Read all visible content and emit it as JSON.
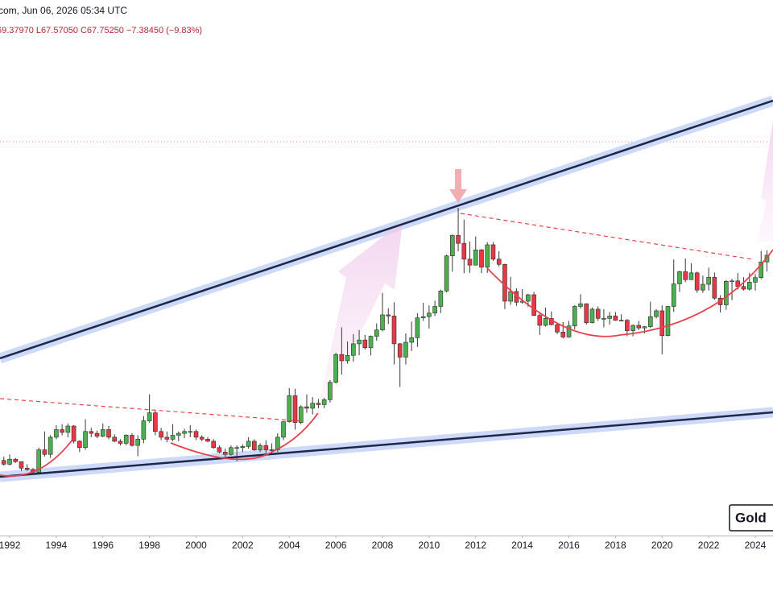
{
  "chart_data": {
    "type": "candlestick",
    "title": "com, Jun 06, 2026 05:34 UTC",
    "subtitle": "69.37970 L67.57050 C67.75250 −7.38450 (−9.83%)",
    "annotations": [
      "Gold"
    ],
    "log_scale": true,
    "up_color": "#4caf50",
    "down_color": "#e53945",
    "xlim": [
      1991.585,
      2024.76
    ],
    "xticks": [
      1992,
      1994,
      1996,
      1998,
      2000,
      2002,
      2004,
      2006,
      2008,
      2010,
      2012,
      2014,
      2016,
      2018,
      2020,
      2022,
      2024
    ],
    "ylim": [
      1.92,
      392.6
    ],
    "x": [
      1991.75,
      1992,
      1992.25,
      1992.5,
      1992.75,
      1993,
      1993.25,
      1993.5,
      1993.75,
      1994,
      1994.25,
      1994.5,
      1994.75,
      1995,
      1995.25,
      1995.5,
      1995.75,
      1996,
      1996.25,
      1996.5,
      1996.75,
      1997,
      1997.25,
      1997.5,
      1997.75,
      1998,
      1998.25,
      1998.5,
      1998.75,
      1999,
      1999.25,
      1999.5,
      1999.75,
      2000,
      2000.25,
      2000.5,
      2000.75,
      2001,
      2001.25,
      2001.5,
      2001.75,
      2002,
      2002.25,
      2002.5,
      2002.75,
      2003,
      2003.25,
      2003.5,
      2003.75,
      2004,
      2004.25,
      2004.5,
      2004.75,
      2005,
      2005.25,
      2005.5,
      2005.75,
      2006,
      2006.25,
      2006.5,
      2006.75,
      2007,
      2007.25,
      2007.5,
      2007.75,
      2008,
      2008.25,
      2008.5,
      2008.75,
      2009,
      2009.25,
      2009.5,
      2009.75,
      2010,
      2010.25,
      2010.5,
      2010.75,
      2011,
      2011.25,
      2011.5,
      2011.75,
      2012,
      2012.25,
      2012.5,
      2012.75,
      2013,
      2013.25,
      2013.5,
      2013.75,
      2014,
      2014.25,
      2014.5,
      2014.75,
      2015,
      2015.25,
      2015.5,
      2015.75,
      2016,
      2016.25,
      2016.5,
      2016.75,
      2017,
      2017.25,
      2017.5,
      2017.75,
      2018,
      2018.25,
      2018.5,
      2018.75,
      2019,
      2019.25,
      2019.5,
      2019.75,
      2020,
      2020.25,
      2020.5,
      2020.75,
      2021,
      2021.25,
      2021.5,
      2021.75,
      2022,
      2022.25,
      2022.5,
      2022.75,
      2023,
      2023.25,
      2023.5,
      2023.75,
      2024,
      2024.25,
      2024.5
    ],
    "open": [
      4.05,
      3.9,
      4.1,
      4.0,
      3.75,
      3.7,
      3.6,
      4.5,
      4.3,
      5.1,
      5.5,
      5.35,
      5.7,
      4.9,
      4.6,
      5.4,
      5.3,
      5.15,
      5.5,
      5.1,
      4.9,
      4.8,
      5.2,
      4.7,
      5.0,
      6.0,
      6.5,
      5.4,
      5.1,
      5.0,
      5.2,
      5.3,
      5.4,
      5.4,
      5.1,
      5.0,
      4.9,
      4.6,
      4.4,
      4.3,
      4.6,
      4.6,
      4.65,
      4.9,
      4.5,
      4.7,
      4.5,
      4.5,
      5.1,
      5.95,
      7.7,
      5.9,
      6.9,
      6.8,
      7.15,
      7.05,
      7.4,
      8.8,
      11.6,
      10.9,
      11.5,
      12.9,
      13.4,
      12.4,
      13.9,
      14.8,
      17.2,
      17.0,
      12.9,
      11.3,
      13.1,
      13.7,
      16.7,
      16.9,
      17.5,
      18.7,
      21.8,
      30.9,
      37.9,
      35.0,
      29.9,
      28.2,
      32.8,
      27.6,
      34.5,
      29.9,
      28.4,
      19.7,
      21.7,
      19.5,
      19.7,
      21.0,
      17.1,
      15.5,
      16.6,
      15.6,
      14.5,
      13.8,
      15.4,
      18.7,
      19.2,
      15.9,
      18.2,
      16.6,
      16.6,
      17.0,
      16.3,
      16.3,
      14.7,
      15.5,
      15.1,
      15.3,
      16.9,
      17.9,
      14.0,
      18.7,
      23.4,
      26.4,
      24.4,
      26.1,
      22.0,
      23.3,
      25.0,
      20.3,
      19.0,
      24.0,
      24.1,
      22.8,
      22.2,
      23.8,
      24.9,
      29.1
    ],
    "high": [
      4.2,
      4.3,
      4.15,
      4.0,
      3.9,
      3.75,
      4.6,
      5.4,
      5.2,
      5.75,
      5.8,
      5.85,
      5.75,
      4.95,
      6.1,
      5.6,
      5.45,
      5.85,
      5.7,
      5.25,
      5.0,
      5.25,
      5.3,
      5.2,
      6.3,
      7.8,
      6.7,
      5.6,
      5.4,
      5.8,
      5.4,
      5.55,
      5.75,
      5.5,
      5.2,
      5.1,
      5.0,
      4.7,
      4.55,
      4.7,
      4.7,
      4.75,
      5.1,
      5.0,
      4.8,
      4.95,
      4.8,
      5.3,
      6.0,
      8.3,
      8.25,
      7.0,
      7.8,
      7.6,
      7.45,
      7.55,
      9.0,
      11.8,
      15.2,
      13.2,
      14.2,
      14.8,
      14.1,
      14.0,
      15.8,
      21.4,
      18.4,
      19.5,
      13.0,
      14.3,
      16.1,
      17.5,
      19.4,
      18.9,
      19.8,
      22.1,
      31.3,
      38.2,
      49.8,
      44.3,
      35.6,
      37.5,
      33.1,
      35.4,
      35.4,
      32.4,
      28.6,
      25.1,
      22.4,
      22.2,
      21.2,
      21.6,
      17.5,
      18.5,
      17.8,
      15.8,
      16.0,
      16.2,
      18.9,
      21.1,
      19.3,
      18.5,
      18.7,
      18.2,
      17.7,
      17.7,
      17.3,
      16.5,
      15.6,
      16.2,
      15.4,
      19.6,
      18.2,
      18.9,
      18.8,
      29.8,
      26.7,
      30.1,
      28.7,
      26.4,
      25.4,
      27.5,
      26.2,
      20.9,
      24.3,
      24.6,
      26.1,
      25.0,
      26.1,
      25.8,
      32.5,
      32.7
    ],
    "low": [
      3.85,
      3.85,
      3.95,
      3.65,
      3.65,
      3.52,
      3.55,
      4.2,
      4.15,
      5.0,
      5.2,
      5.1,
      4.8,
      4.4,
      4.5,
      5.1,
      5.05,
      5.1,
      5.0,
      4.85,
      4.7,
      4.7,
      4.65,
      4.22,
      4.8,
      5.9,
      5.2,
      4.95,
      4.85,
      4.9,
      4.9,
      5.05,
      5.1,
      4.95,
      4.9,
      4.85,
      4.55,
      4.35,
      4.2,
      4.25,
      4.02,
      4.4,
      4.55,
      4.45,
      4.4,
      4.35,
      4.35,
      4.4,
      4.95,
      5.9,
      5.5,
      5.8,
      6.5,
      6.4,
      6.8,
      6.8,
      7.2,
      8.7,
      9.5,
      10.6,
      10.8,
      11.5,
      12.2,
      11.5,
      13.3,
      14.6,
      15.7,
      10.5,
      8.4,
      10.5,
      12.0,
      12.5,
      16.2,
      15.0,
      17.0,
      17.5,
      21.5,
      26.4,
      32.3,
      26.0,
      26.1,
      28.1,
      26.0,
      26.1,
      29.4,
      27.8,
      18.2,
      19.0,
      18.8,
      19.2,
      18.6,
      17.0,
      14.1,
      15.3,
      15.5,
      14.2,
      13.6,
      13.7,
      14.9,
      18.3,
      15.6,
      15.8,
      16.2,
      15.2,
      15.6,
      16.2,
      16.1,
      13.9,
      13.9,
      14.8,
      14.3,
      15.1,
      16.6,
      11.6,
      13.9,
      17.7,
      21.6,
      23.8,
      24.3,
      21.4,
      21.4,
      21.9,
      20.0,
      17.6,
      18.1,
      19.9,
      22.1,
      21.9,
      21.9,
      21.9,
      24.5,
      26.5
    ],
    "close": [
      3.9,
      4.1,
      4.0,
      3.75,
      3.7,
      3.6,
      4.5,
      4.3,
      5.1,
      5.5,
      5.35,
      5.7,
      4.9,
      4.6,
      5.4,
      5.3,
      5.15,
      5.5,
      5.1,
      4.9,
      4.8,
      5.2,
      4.7,
      5.0,
      6.0,
      6.5,
      5.4,
      5.1,
      5.0,
      5.2,
      5.3,
      5.4,
      5.4,
      5.1,
      5.0,
      4.9,
      4.6,
      4.4,
      4.3,
      4.6,
      4.6,
      4.65,
      4.9,
      4.5,
      4.7,
      4.5,
      4.5,
      5.1,
      5.95,
      7.7,
      5.9,
      6.9,
      6.8,
      7.15,
      7.05,
      7.4,
      8.8,
      11.6,
      10.9,
      11.5,
      12.9,
      13.4,
      12.4,
      13.9,
      14.8,
      17.2,
      17.0,
      12.9,
      11.3,
      13.1,
      13.7,
      16.7,
      16.9,
      17.5,
      18.7,
      21.8,
      30.9,
      37.9,
      35.0,
      29.9,
      28.2,
      32.8,
      27.6,
      34.5,
      29.9,
      28.4,
      19.7,
      21.7,
      19.5,
      19.7,
      21.0,
      17.1,
      15.5,
      16.6,
      15.6,
      14.5,
      13.8,
      15.4,
      18.7,
      19.2,
      15.9,
      18.2,
      16.6,
      16.6,
      17.0,
      16.3,
      16.3,
      14.7,
      15.5,
      15.1,
      15.3,
      16.9,
      17.9,
      14.0,
      18.7,
      23.4,
      26.4,
      24.4,
      26.1,
      22.0,
      23.3,
      25.0,
      20.3,
      19.0,
      24.0,
      24.1,
      22.8,
      22.2,
      23.8,
      24.9,
      29.1,
      31.1
    ]
  }
}
